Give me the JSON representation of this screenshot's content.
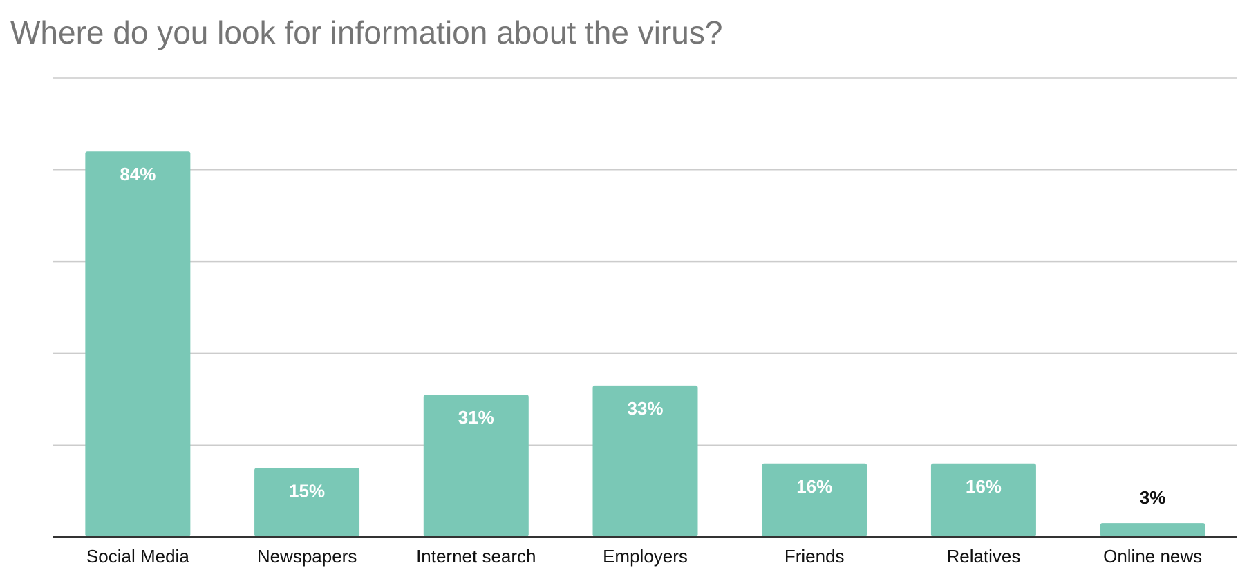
{
  "chart_data": {
    "type": "bar",
    "title": "Where do you look for information about the virus?",
    "categories": [
      "Social Media",
      "Newspapers",
      "Internet search",
      "Employers",
      "Friends",
      "Relatives",
      "Online news"
    ],
    "series": [
      {
        "values": [
          84,
          15,
          31,
          33,
          16,
          16,
          3
        ],
        "labels": [
          "84%",
          "15%",
          "31%",
          "33%",
          "16%",
          "16%",
          "3%"
        ]
      }
    ],
    "ylim": [
      0,
      100
    ],
    "grid": true,
    "xlabel": "",
    "ylabel": "",
    "colors": {
      "bar": "#7ac8b6",
      "grid": "#cccccc",
      "axis": "#333333",
      "label_inside": "#ffffff",
      "label_outside": "#111111",
      "title": "#757575"
    }
  }
}
